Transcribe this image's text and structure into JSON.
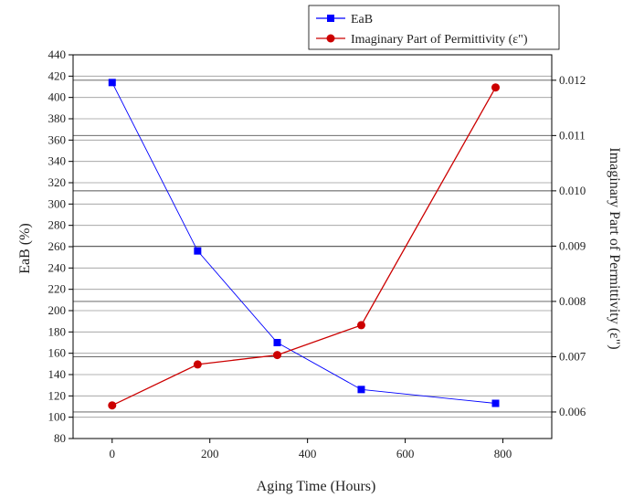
{
  "chart_data": {
    "type": "line",
    "xlabel": "Aging Time (Hours)",
    "ylabel": "EaB (%)",
    "y2label": "Imaginary Part of Permittivity (ε\")",
    "xlim": [
      -80,
      900
    ],
    "ylim": [
      80,
      440
    ],
    "y2lim": [
      0.00552,
      0.01246
    ],
    "xticks": [
      0,
      200,
      400,
      600,
      800
    ],
    "yticks": [
      80,
      100,
      120,
      140,
      160,
      180,
      200,
      220,
      240,
      260,
      280,
      300,
      320,
      340,
      360,
      380,
      400,
      420,
      440
    ],
    "y2ticks": [
      0.006,
      0.007,
      0.008,
      0.009,
      0.01,
      0.011,
      0.012
    ],
    "legend": "top-right",
    "grid": true,
    "series": [
      {
        "name": "EaB",
        "axis": "left",
        "color": "#0000ff",
        "marker": "square",
        "x": [
          0,
          175,
          338,
          510,
          785
        ],
        "y": [
          414,
          256,
          170,
          126,
          113
        ]
      },
      {
        "name": "Imaginary Part of Permittivity (ε\")",
        "axis": "right",
        "color": "#cc0000",
        "marker": "circle",
        "x": [
          0,
          175,
          338,
          510,
          785
        ],
        "y": [
          0.00612,
          0.00686,
          0.00703,
          0.00757,
          0.01187
        ]
      }
    ]
  }
}
